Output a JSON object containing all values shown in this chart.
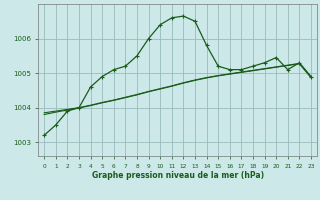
{
  "title": "Graphe pression niveau de la mer (hPa)",
  "background_color": "#cce8e8",
  "grid_color": "#99bbbb",
  "line_color": "#1a5c1a",
  "x_ticks": [
    0,
    1,
    2,
    3,
    4,
    5,
    6,
    7,
    8,
    9,
    10,
    11,
    12,
    13,
    14,
    15,
    16,
    17,
    18,
    19,
    20,
    21,
    22,
    23
  ],
  "ylim": [
    1002.6,
    1007.0
  ],
  "yticks": [
    1003,
    1004,
    1005,
    1006
  ],
  "series1": [
    1003.2,
    1003.5,
    1003.9,
    1004.0,
    1004.6,
    1004.9,
    1005.1,
    1005.2,
    1005.5,
    1006.0,
    1006.4,
    1006.6,
    1006.65,
    1006.5,
    1005.8,
    1005.2,
    1005.1,
    1005.1,
    1005.2,
    1005.3,
    1005.45,
    1005.1,
    1005.3,
    1004.9
  ],
  "series2": [
    1003.85,
    1003.9,
    1003.95,
    1004.0,
    1004.07,
    1004.15,
    1004.22,
    1004.3,
    1004.38,
    1004.47,
    1004.55,
    1004.63,
    1004.72,
    1004.8,
    1004.87,
    1004.93,
    1004.98,
    1005.03,
    1005.08,
    1005.13,
    1005.18,
    1005.23,
    1005.28,
    1004.88
  ],
  "series3": [
    1003.8,
    1003.87,
    1003.93,
    1003.99,
    1004.06,
    1004.14,
    1004.21,
    1004.29,
    1004.37,
    1004.46,
    1004.54,
    1004.62,
    1004.71,
    1004.79,
    1004.86,
    1004.92,
    1004.97,
    1005.02,
    1005.07,
    1005.12,
    1005.17,
    1005.22,
    1005.27,
    1004.87
  ]
}
